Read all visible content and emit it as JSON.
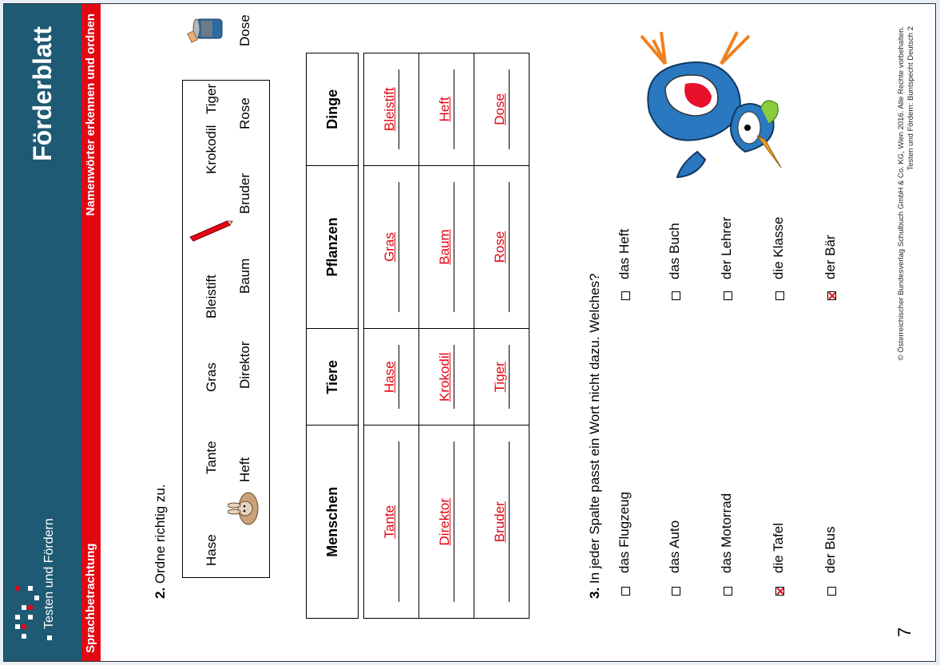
{
  "header": {
    "brand": "Testen und Fördern",
    "title": "Förderblatt",
    "left_label": "Sprachbetrachtung",
    "right_label": "Namenwörter erkennen und ordnen",
    "colors": {
      "bar": "#1e5a73",
      "accent": "#e30613"
    }
  },
  "task2": {
    "number": "2.",
    "instruction": "Ordne richtig zu.",
    "words_row1": [
      "Hase",
      "Tante",
      "Gras",
      "Bleistift",
      "Krokodil",
      "Tiger"
    ],
    "words_row2": [
      "Heft",
      "Direktor",
      "Baum",
      "Bruder",
      "Rose",
      "Dose"
    ],
    "icons": [
      "hase-icon",
      "bleistift-icon",
      "dose-icon"
    ],
    "table": {
      "headers": [
        "Menschen",
        "Tiere",
        "Pflanzen",
        "Dinge"
      ],
      "rows": [
        [
          "Tante",
          "Hase",
          "Gras",
          "Bleistift"
        ],
        [
          "Direktor",
          "Krokodil",
          "Baum",
          "Heft"
        ],
        [
          "Bruder",
          "Tiger",
          "Rose",
          "Dose"
        ]
      ]
    }
  },
  "task3": {
    "number": "3.",
    "instruction": "In jeder Spalte passt ein Wort nicht dazu. Welches?",
    "col1": [
      {
        "word": "das Flugzeug",
        "checked": false
      },
      {
        "word": "das Auto",
        "checked": false
      },
      {
        "word": "das Motorrad",
        "checked": false
      },
      {
        "word": "die Tafel",
        "checked": true
      },
      {
        "word": "der Bus",
        "checked": false
      }
    ],
    "col2": [
      {
        "word": "das Heft",
        "checked": false
      },
      {
        "word": "das Buch",
        "checked": false
      },
      {
        "word": "der Lehrer",
        "checked": false
      },
      {
        "word": "die Klasse",
        "checked": false
      },
      {
        "word": "der Bär",
        "checked": true
      }
    ]
  },
  "footer": {
    "page_number": "7",
    "copyright_line1": "© Österreichischer Bundesverlag Schulbuch GmbH & Co. KG, Wien 2016. Alle Rechte vorbehalten.",
    "copyright_line2": "Testen und Fördern: Buntspecht Deutsch 2"
  }
}
